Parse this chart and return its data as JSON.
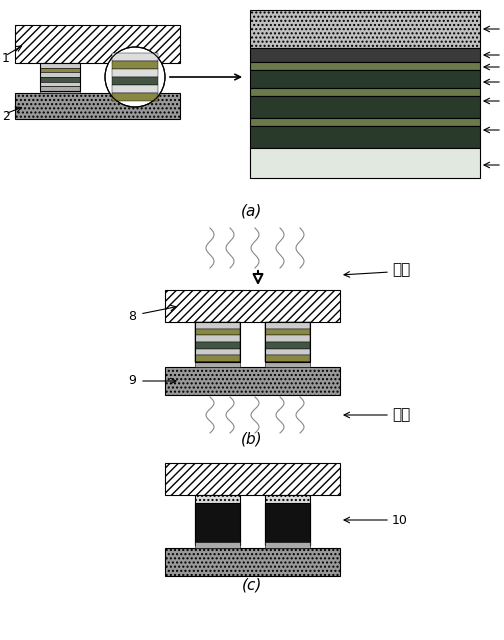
{
  "fig_width": 5.04,
  "fig_height": 6.4,
  "dpi": 100,
  "bg_color": "#ffffff",
  "hatch_diag": "////",
  "hatch_dot": "....",
  "label_a": "(a)",
  "label_b": "(b)",
  "label_c": "(c)",
  "chinese_pressure": "加压",
  "chinese_heat": "加热",
  "layer_colors": [
    "#c8c8c8",
    "#444444",
    "#888855",
    "#2a3a2a",
    "#888855",
    "#2a3a2a",
    "#d8e8d8"
  ],
  "bump_colors": [
    "#cccccc",
    "#888844",
    "#cccccc",
    "#445544",
    "#cccccc",
    "#888844"
  ],
  "sub_color": "#888888",
  "chip_color": "#ffffff",
  "imc_color": "#111111"
}
